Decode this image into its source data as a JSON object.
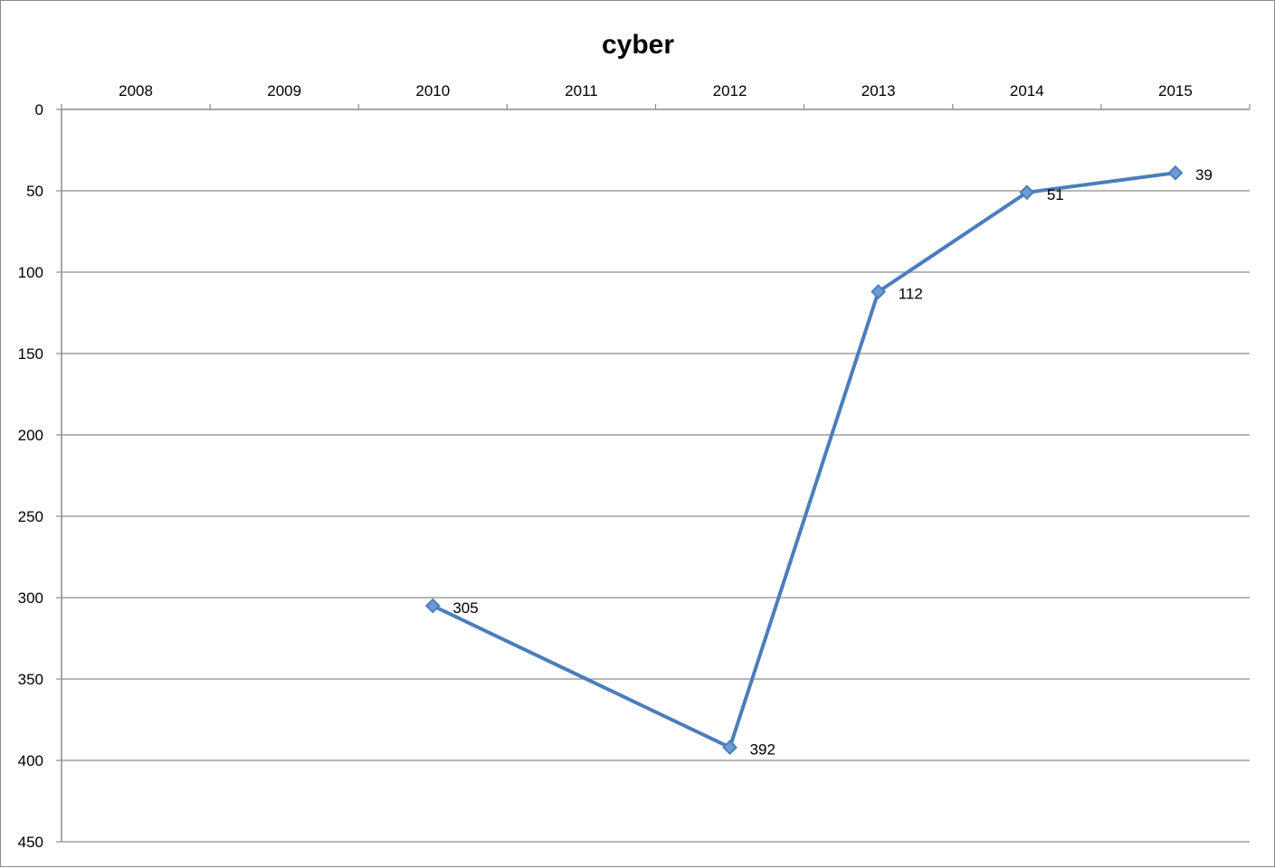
{
  "chart_data": {
    "type": "line",
    "title": "cyber",
    "categories": [
      "2008",
      "2009",
      "2010",
      "2011",
      "2012",
      "2013",
      "2014",
      "2015"
    ],
    "series": [
      {
        "values": [
          null,
          null,
          305,
          null,
          392,
          112,
          51,
          39
        ],
        "color": "#4a7ebb"
      }
    ],
    "data_labels": [
      "",
      "",
      "305",
      "",
      "392",
      "112",
      "51",
      "39"
    ],
    "y_ticks": [
      "0",
      "50",
      "100",
      "150",
      "200",
      "250",
      "300",
      "350",
      "400",
      "450"
    ],
    "ylim": [
      0,
      450
    ],
    "y_axis_reversed": true,
    "x_axis_position": "top",
    "grid": "horizontal",
    "legend": "none",
    "xlabel": "",
    "ylabel": ""
  }
}
